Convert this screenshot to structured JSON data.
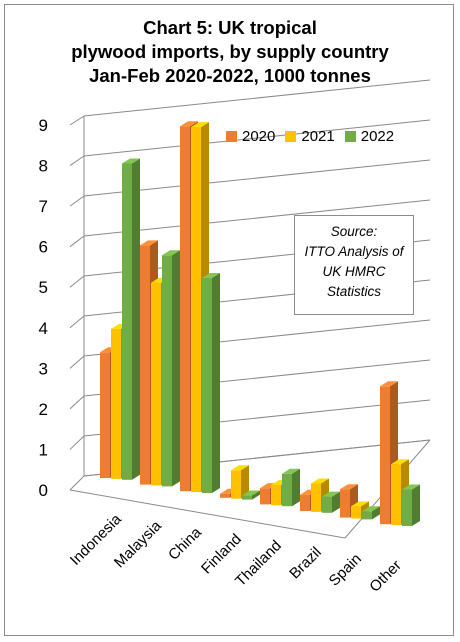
{
  "chart_data": {
    "type": "bar",
    "title_lines": [
      "Chart 5: UK tropical",
      "plywood imports, by supply country",
      "Jan-Feb 2020-2022, 1000 tonnes"
    ],
    "categories": [
      "Indonesia",
      "Malaysia",
      "China",
      "Finland",
      "Thailand",
      "Brazil",
      "Spain",
      "Other"
    ],
    "series": [
      {
        "name": "2020",
        "color": "#ED7D31",
        "values": [
          3.1,
          5.9,
          9.0,
          0.1,
          0.4,
          0.4,
          0.7,
          3.4
        ]
      },
      {
        "name": "2021",
        "color": "#FFC000",
        "values": [
          3.7,
          5.0,
          9.0,
          0.7,
          0.5,
          0.7,
          0.3,
          1.5
        ]
      },
      {
        "name": "2022",
        "color": "#70AD47",
        "values": [
          7.8,
          5.7,
          5.3,
          0.1,
          0.8,
          0.4,
          0.2,
          0.9
        ]
      }
    ],
    "ylim": [
      0,
      9
    ],
    "yticks": [
      "0",
      "1",
      "2",
      "3",
      "4",
      "5",
      "6",
      "7",
      "8",
      "9"
    ],
    "grid": true,
    "legend_position": "top-right",
    "xlabel": "",
    "ylabel": "",
    "note_lines": [
      "Source:",
      "ITTO Analysis of",
      "UK HMRC",
      "Statistics"
    ]
  }
}
